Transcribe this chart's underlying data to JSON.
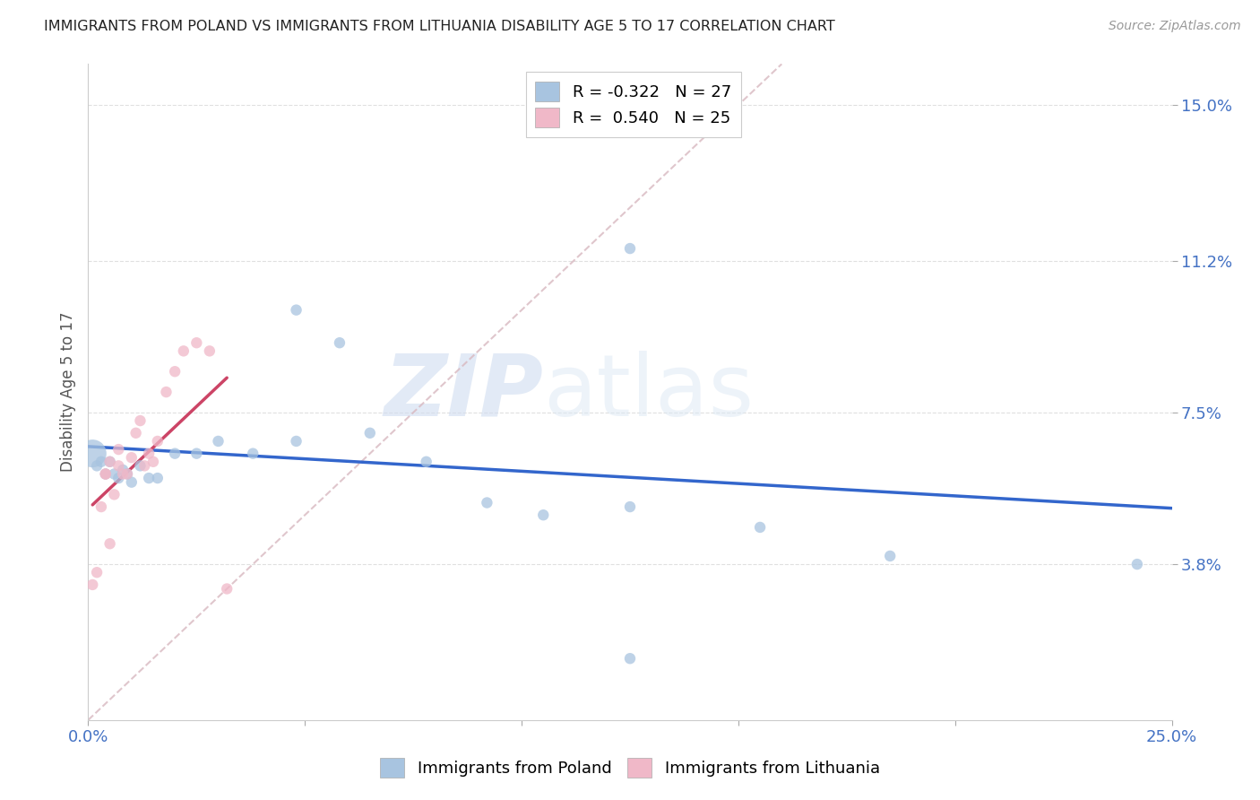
{
  "title": "IMMIGRANTS FROM POLAND VS IMMIGRANTS FROM LITHUANIA DISABILITY AGE 5 TO 17 CORRELATION CHART",
  "source": "Source: ZipAtlas.com",
  "ylabel": "Disability Age 5 to 17",
  "xlim": [
    0.0,
    0.25
  ],
  "ylim": [
    0.0,
    0.16
  ],
  "xticks": [
    0.0,
    0.05,
    0.1,
    0.15,
    0.2,
    0.25
  ],
  "xticklabels": [
    "0.0%",
    "",
    "",
    "",
    "",
    "25.0%"
  ],
  "ytick_positions": [
    0.038,
    0.075,
    0.112,
    0.15
  ],
  "ytick_labels": [
    "3.8%",
    "7.5%",
    "11.2%",
    "15.0%"
  ],
  "watermark_zip": "ZIP",
  "watermark_atlas": "atlas",
  "poland_color": "#a8c4e0",
  "lithuania_color": "#f0b8c8",
  "poland_R": -0.322,
  "poland_N": 27,
  "lithuania_R": 0.54,
  "lithuania_N": 25,
  "poland_line_color": "#3366cc",
  "lithuania_line_color": "#cc4466",
  "diagonal_color": "#d8b8c0",
  "poland_scatter_x": [
    0.001,
    0.002,
    0.003,
    0.004,
    0.005,
    0.006,
    0.007,
    0.008,
    0.009,
    0.01,
    0.012,
    0.014,
    0.016,
    0.02,
    0.025,
    0.03,
    0.038,
    0.048,
    0.058,
    0.065,
    0.078,
    0.092,
    0.105,
    0.125,
    0.155,
    0.185,
    0.242
  ],
  "poland_scatter_y": [
    0.065,
    0.062,
    0.063,
    0.06,
    0.063,
    0.06,
    0.059,
    0.061,
    0.06,
    0.058,
    0.062,
    0.059,
    0.059,
    0.065,
    0.065,
    0.068,
    0.065,
    0.068,
    0.092,
    0.07,
    0.063,
    0.053,
    0.05,
    0.052,
    0.047,
    0.04,
    0.038
  ],
  "poland_scatter_sizes": [
    500,
    80,
    80,
    80,
    80,
    80,
    80,
    80,
    80,
    80,
    80,
    80,
    80,
    80,
    80,
    80,
    80,
    80,
    80,
    80,
    80,
    80,
    80,
    80,
    80,
    80,
    80
  ],
  "lithuania_scatter_x": [
    0.001,
    0.002,
    0.003,
    0.004,
    0.004,
    0.005,
    0.005,
    0.006,
    0.007,
    0.007,
    0.008,
    0.009,
    0.01,
    0.011,
    0.012,
    0.013,
    0.014,
    0.015,
    0.016,
    0.018,
    0.02,
    0.022,
    0.025,
    0.028,
    0.032
  ],
  "lithuania_scatter_y": [
    0.033,
    0.036,
    0.052,
    0.06,
    0.06,
    0.043,
    0.063,
    0.055,
    0.062,
    0.066,
    0.06,
    0.06,
    0.064,
    0.07,
    0.073,
    0.062,
    0.065,
    0.063,
    0.068,
    0.08,
    0.085,
    0.09,
    0.092,
    0.09,
    0.032
  ],
  "lithuania_scatter_sizes": [
    80,
    80,
    80,
    80,
    80,
    80,
    80,
    80,
    80,
    80,
    80,
    80,
    80,
    80,
    80,
    80,
    80,
    80,
    80,
    80,
    80,
    80,
    80,
    80,
    80
  ],
  "background_color": "#ffffff",
  "grid_color": "#e0e0e0",
  "poland_extra_x": [
    0.125
  ],
  "poland_extra_y": [
    0.115
  ],
  "poland_extra2_x": [
    0.048
  ],
  "poland_extra2_y": [
    0.1
  ]
}
